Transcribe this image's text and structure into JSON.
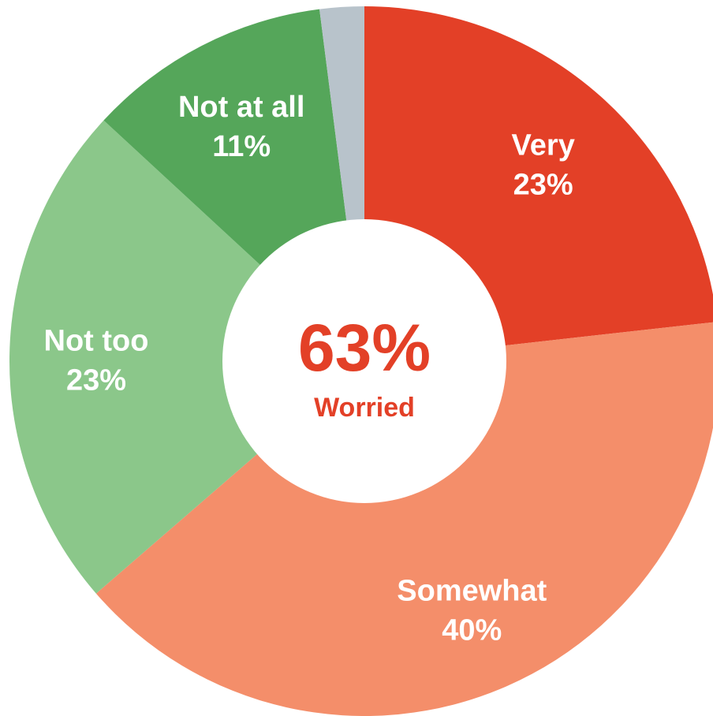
{
  "chart_data": {
    "type": "pie",
    "donut": true,
    "slices": [
      {
        "label": "Very",
        "value": 23,
        "value_label": "23%",
        "color": "#E34027"
      },
      {
        "label": "Somewhat",
        "value": 40,
        "value_label": "40%",
        "color": "#F48E6A"
      },
      {
        "label": "Not too",
        "value": 23,
        "value_label": "23%",
        "color": "#8BC78A"
      },
      {
        "label": "Not at all",
        "value": 11,
        "value_label": "11%",
        "color": "#55A65A"
      },
      {
        "label": "",
        "value": 2,
        "value_label": "",
        "color": "#B8C3CB"
      }
    ],
    "center": {
      "value": "63%",
      "caption": "Worried",
      "color": "#E34027"
    }
  }
}
